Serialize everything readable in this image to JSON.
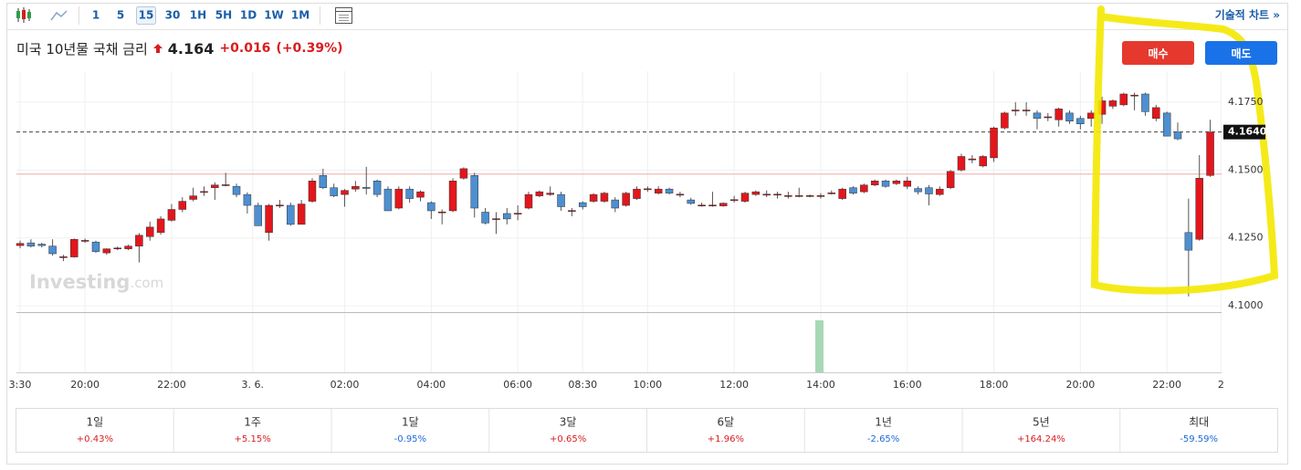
{
  "toolbar": {
    "intervals": [
      "1",
      "5",
      "15",
      "30",
      "1H",
      "5H",
      "1D",
      "1W",
      "1M"
    ],
    "active_interval": 2,
    "technical_chart": "기술적 차트 »"
  },
  "header": {
    "name": "미국 10년물 국채 금리",
    "price": "4.164",
    "change": "+0.016",
    "change_pct": "(+0.39%)"
  },
  "buttons": {
    "buy": "매수",
    "sell": "매도"
  },
  "chart_data": {
    "type": "candlestick",
    "watermark_brand": "Investing",
    "watermark_domain": ".com",
    "up_color": "#e3161c",
    "down_color": "#4d8fd1",
    "ylim": [
      4.0977,
      4.1864
    ],
    "yticks": [
      {
        "value": 4.1,
        "label": "4.1000"
      },
      {
        "value": 4.125,
        "label": "4.1250"
      },
      {
        "value": 4.15,
        "label": "4.1500"
      },
      {
        "value": 4.175,
        "label": "4.1750"
      }
    ],
    "xlim": [
      -0.34,
      111.05
    ],
    "xticks": [
      {
        "value": 0,
        "label": "3:30"
      },
      {
        "value": 6,
        "label": "20:00"
      },
      {
        "value": 14,
        "label": "22:00"
      },
      {
        "value": 21.5,
        "label": "3. 6."
      },
      {
        "value": 30,
        "label": "02:00"
      },
      {
        "value": 38,
        "label": "04:00"
      },
      {
        "value": 46,
        "label": "06:00"
      },
      {
        "value": 52,
        "label": "08:30"
      },
      {
        "value": 58,
        "label": "10:00"
      },
      {
        "value": 66,
        "label": "12:00"
      },
      {
        "value": 74,
        "label": "14:00"
      },
      {
        "value": 82,
        "label": "16:00"
      },
      {
        "value": 90,
        "label": "18:00"
      },
      {
        "value": 98,
        "label": "20:00"
      },
      {
        "value": 106,
        "label": "22:00"
      },
      {
        "value": 111,
        "label": "2"
      }
    ],
    "grid": true,
    "last_price": {
      "value": 4.164,
      "label": "4.1640"
    },
    "prev_close": 4.1485,
    "candles": [
      [
        4.1222,
        4.124,
        4.1212,
        4.123
      ],
      [
        4.1232,
        4.1245,
        4.1215,
        4.122
      ],
      [
        4.1227,
        4.1232,
        4.1215,
        4.1222
      ],
      [
        4.122,
        4.1245,
        4.1185,
        4.1192
      ],
      [
        4.118,
        4.1188,
        4.1165,
        4.1181
      ],
      [
        4.118,
        4.1248,
        4.1178,
        4.1245
      ],
      [
        4.124,
        4.1248,
        4.1232,
        4.1241
      ],
      [
        4.1235,
        4.124,
        4.1195,
        4.12
      ],
      [
        4.1195,
        4.1212,
        4.1188,
        4.121
      ],
      [
        4.1212,
        4.1218,
        4.1205,
        4.1213
      ],
      [
        4.121,
        4.1225,
        4.1205,
        4.122
      ],
      [
        4.122,
        4.1268,
        4.116,
        4.126
      ],
      [
        4.1255,
        4.131,
        4.124,
        4.129
      ],
      [
        4.127,
        4.133,
        4.1262,
        4.132
      ],
      [
        4.1315,
        4.1375,
        4.131,
        4.1355
      ],
      [
        4.1355,
        4.14,
        4.1345,
        4.1385
      ],
      [
        4.1392,
        4.1435,
        4.1385,
        4.1405
      ],
      [
        4.142,
        4.144,
        4.1405,
        4.1421
      ],
      [
        4.1435,
        4.1455,
        4.139,
        4.1445
      ],
      [
        4.1445,
        4.149,
        4.144,
        4.1446
      ],
      [
        4.144,
        4.145,
        4.14,
        4.141
      ],
      [
        4.141,
        4.1418,
        4.134,
        4.137
      ],
      [
        4.137,
        4.138,
        4.1295,
        4.1295
      ],
      [
        4.127,
        4.1375,
        4.124,
        4.137
      ],
      [
        4.137,
        4.139,
        4.136,
        4.1371
      ],
      [
        4.137,
        4.138,
        4.1295,
        4.13
      ],
      [
        4.13,
        4.139,
        4.13,
        4.1375
      ],
      [
        4.1385,
        4.147,
        4.138,
        4.146
      ],
      [
        4.148,
        4.1505,
        4.143,
        4.1435
      ],
      [
        4.1435,
        4.145,
        4.14,
        4.1405
      ],
      [
        4.141,
        4.143,
        4.1365,
        4.1425
      ],
      [
        4.143,
        4.146,
        4.142,
        4.144
      ],
      [
        4.1436,
        4.1512,
        4.141,
        4.1435
      ],
      [
        4.146,
        4.1465,
        4.14,
        4.141
      ],
      [
        4.143,
        4.144,
        4.135,
        4.135
      ],
      [
        4.136,
        4.144,
        4.1355,
        4.143
      ],
      [
        4.143,
        4.144,
        4.138,
        4.1395
      ],
      [
        4.14,
        4.1425,
        4.1385,
        4.142
      ],
      [
        4.138,
        4.1385,
        4.132,
        4.135
      ],
      [
        4.1345,
        4.1355,
        4.13,
        4.1346
      ],
      [
        4.135,
        4.147,
        4.1345,
        4.146
      ],
      [
        4.147,
        4.151,
        4.1465,
        4.1505
      ],
      [
        4.148,
        4.149,
        4.1325,
        4.136
      ],
      [
        4.1345,
        4.136,
        4.13,
        4.1305
      ],
      [
        4.132,
        4.1345,
        4.1265,
        4.1321
      ],
      [
        4.134,
        4.136,
        4.13,
        4.132
      ],
      [
        4.134,
        4.137,
        4.1315,
        4.1341
      ],
      [
        4.136,
        4.142,
        4.1355,
        4.141
      ],
      [
        4.1405,
        4.1425,
        4.14,
        4.142
      ],
      [
        4.141,
        4.144,
        4.1405,
        4.1415
      ],
      [
        4.141,
        4.142,
        4.135,
        4.1365
      ],
      [
        4.135,
        4.136,
        4.133,
        4.1351
      ],
      [
        4.138,
        4.1385,
        4.1355,
        4.1365
      ],
      [
        4.1385,
        4.1415,
        4.138,
        4.141
      ],
      [
        4.1385,
        4.142,
        4.138,
        4.1415
      ],
      [
        4.139,
        4.14,
        4.1345,
        4.136
      ],
      [
        4.137,
        4.142,
        4.1365,
        4.1415
      ],
      [
        4.1395,
        4.144,
        4.139,
        4.143
      ],
      [
        4.143,
        4.144,
        4.142,
        4.1431
      ],
      [
        4.1415,
        4.144,
        4.141,
        4.143
      ],
      [
        4.143,
        4.1435,
        4.141,
        4.1415
      ],
      [
        4.141,
        4.142,
        4.14,
        4.1411
      ],
      [
        4.139,
        4.1398,
        4.1372,
        4.1377
      ],
      [
        4.137,
        4.138,
        4.1365,
        4.1371
      ],
      [
        4.137,
        4.142,
        4.1365,
        4.1371
      ],
      [
        4.1368,
        4.138,
        4.1365,
        4.1378
      ],
      [
        4.139,
        4.1405,
        4.138,
        4.1391
      ],
      [
        4.1385,
        4.142,
        4.138,
        4.1415
      ],
      [
        4.141,
        4.1425,
        4.1405,
        4.142
      ],
      [
        4.141,
        4.1425,
        4.14,
        4.1411
      ],
      [
        4.141,
        4.142,
        4.1395,
        4.1411
      ],
      [
        4.1405,
        4.142,
        4.1395,
        4.1406
      ],
      [
        4.1405,
        4.1435,
        4.14,
        4.1406
      ],
      [
        4.1405,
        4.141,
        4.14,
        4.1406
      ],
      [
        4.1405,
        4.1415,
        4.1395,
        4.1406
      ],
      [
        4.1415,
        4.1425,
        4.141,
        4.1416
      ],
      [
        4.1395,
        4.1435,
        4.139,
        4.143
      ],
      [
        4.1435,
        4.144,
        4.141,
        4.1415
      ],
      [
        4.142,
        4.145,
        4.1415,
        4.1445
      ],
      [
        4.1445,
        4.1465,
        4.144,
        4.146
      ],
      [
        4.146,
        4.1465,
        4.1435,
        4.144
      ],
      [
        4.145,
        4.1465,
        4.1445,
        4.146
      ],
      [
        4.144,
        4.1475,
        4.143,
        4.146
      ],
      [
        4.1432,
        4.144,
        4.141,
        4.142
      ],
      [
        4.1435,
        4.1445,
        4.137,
        4.1412
      ],
      [
        4.141,
        4.144,
        4.1405,
        4.143
      ],
      [
        4.1435,
        4.15,
        4.143,
        4.1495
      ],
      [
        4.15,
        4.156,
        4.1495,
        4.155
      ],
      [
        4.154,
        4.1555,
        4.1525,
        4.1541
      ],
      [
        4.1515,
        4.1555,
        4.151,
        4.155
      ],
      [
        4.1545,
        4.166,
        4.153,
        4.1655
      ],
      [
        4.1655,
        4.1715,
        4.165,
        4.171
      ],
      [
        4.172,
        4.175,
        4.17,
        4.1721
      ],
      [
        4.172,
        4.175,
        4.17,
        4.1721
      ],
      [
        4.171,
        4.172,
        4.165,
        4.169
      ],
      [
        4.1695,
        4.171,
        4.168,
        4.1696
      ],
      [
        4.1685,
        4.173,
        4.166,
        4.1725
      ],
      [
        4.171,
        4.172,
        4.167,
        4.168
      ],
      [
        4.169,
        4.17,
        4.165,
        4.167
      ],
      [
        4.169,
        4.172,
        4.166,
        4.171
      ],
      [
        4.1705,
        4.177,
        4.167,
        4.1755
      ],
      [
        4.1735,
        4.176,
        4.1725,
        4.1755
      ],
      [
        4.174,
        4.1785,
        4.1735,
        4.178
      ],
      [
        4.1775,
        4.1785,
        4.172,
        4.1776
      ],
      [
        4.178,
        4.1785,
        4.17,
        4.1715
      ],
      [
        4.169,
        4.174,
        4.168,
        4.173
      ],
      [
        4.171,
        4.1715,
        4.1625,
        4.1625
      ],
      [
        4.164,
        4.1675,
        4.161,
        4.1615
      ],
      [
        4.127,
        4.1395,
        4.1035,
        4.1205
      ],
      [
        4.1245,
        4.1555,
        4.124,
        4.147
      ],
      [
        4.148,
        4.1685,
        4.1475,
        4.164
      ]
    ]
  },
  "performance": [
    {
      "period": "1일",
      "change": "+0.43%"
    },
    {
      "period": "1주",
      "change": "+5.15%"
    },
    {
      "period": "1달",
      "change": "-0.95%"
    },
    {
      "period": "3달",
      "change": "+0.65%"
    },
    {
      "period": "6달",
      "change": "+1.96%"
    },
    {
      "period": "1년",
      "change": "-2.65%"
    },
    {
      "period": "5년",
      "change": "+164.24%"
    },
    {
      "period": "최대",
      "change": "-59.59%"
    }
  ]
}
